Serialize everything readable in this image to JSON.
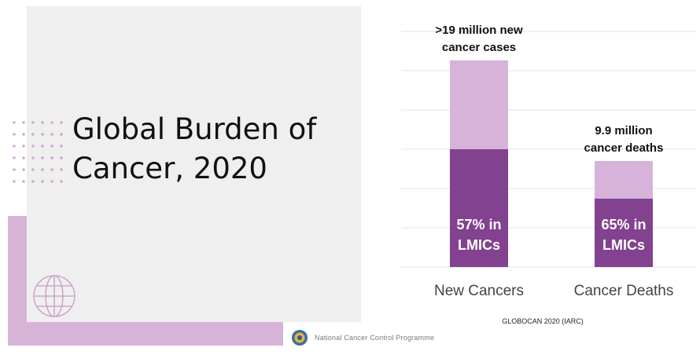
{
  "slide": {
    "title_line1": "Global Burden of",
    "title_line2": "Cancer, 2020",
    "footer_text": "National Cancer Control Programme"
  },
  "colors": {
    "panel_bg": "#efefef",
    "accent_light": "#d8b3d8",
    "bar_light": "#d7b3da",
    "bar_dark": "#82428f",
    "text": "#111111",
    "grid": "#e3e3e3"
  },
  "chart_data": {
    "type": "bar",
    "stacked": true,
    "unit": "million",
    "categories": [
      "New Cancers",
      "Cancer Deaths"
    ],
    "totals": [
      19.3,
      9.9
    ],
    "lmic_share_pct": [
      57,
      65
    ],
    "series": [
      {
        "values": [
          11.0,
          6.4
        ]
      },
      {
        "values": [
          8.3,
          3.5
        ]
      }
    ],
    "top_labels": [
      [
        ">19 million new",
        "cancer cases"
      ],
      [
        "9.9 million",
        "cancer deaths"
      ]
    ],
    "inside_labels": [
      [
        "57%  in",
        "LMICs"
      ],
      [
        "65% in",
        "LMICs"
      ]
    ],
    "source": "GLOBOCAN 2020 (IARC)",
    "ylim": [
      0,
      22
    ],
    "grid": true,
    "legend": "none"
  }
}
